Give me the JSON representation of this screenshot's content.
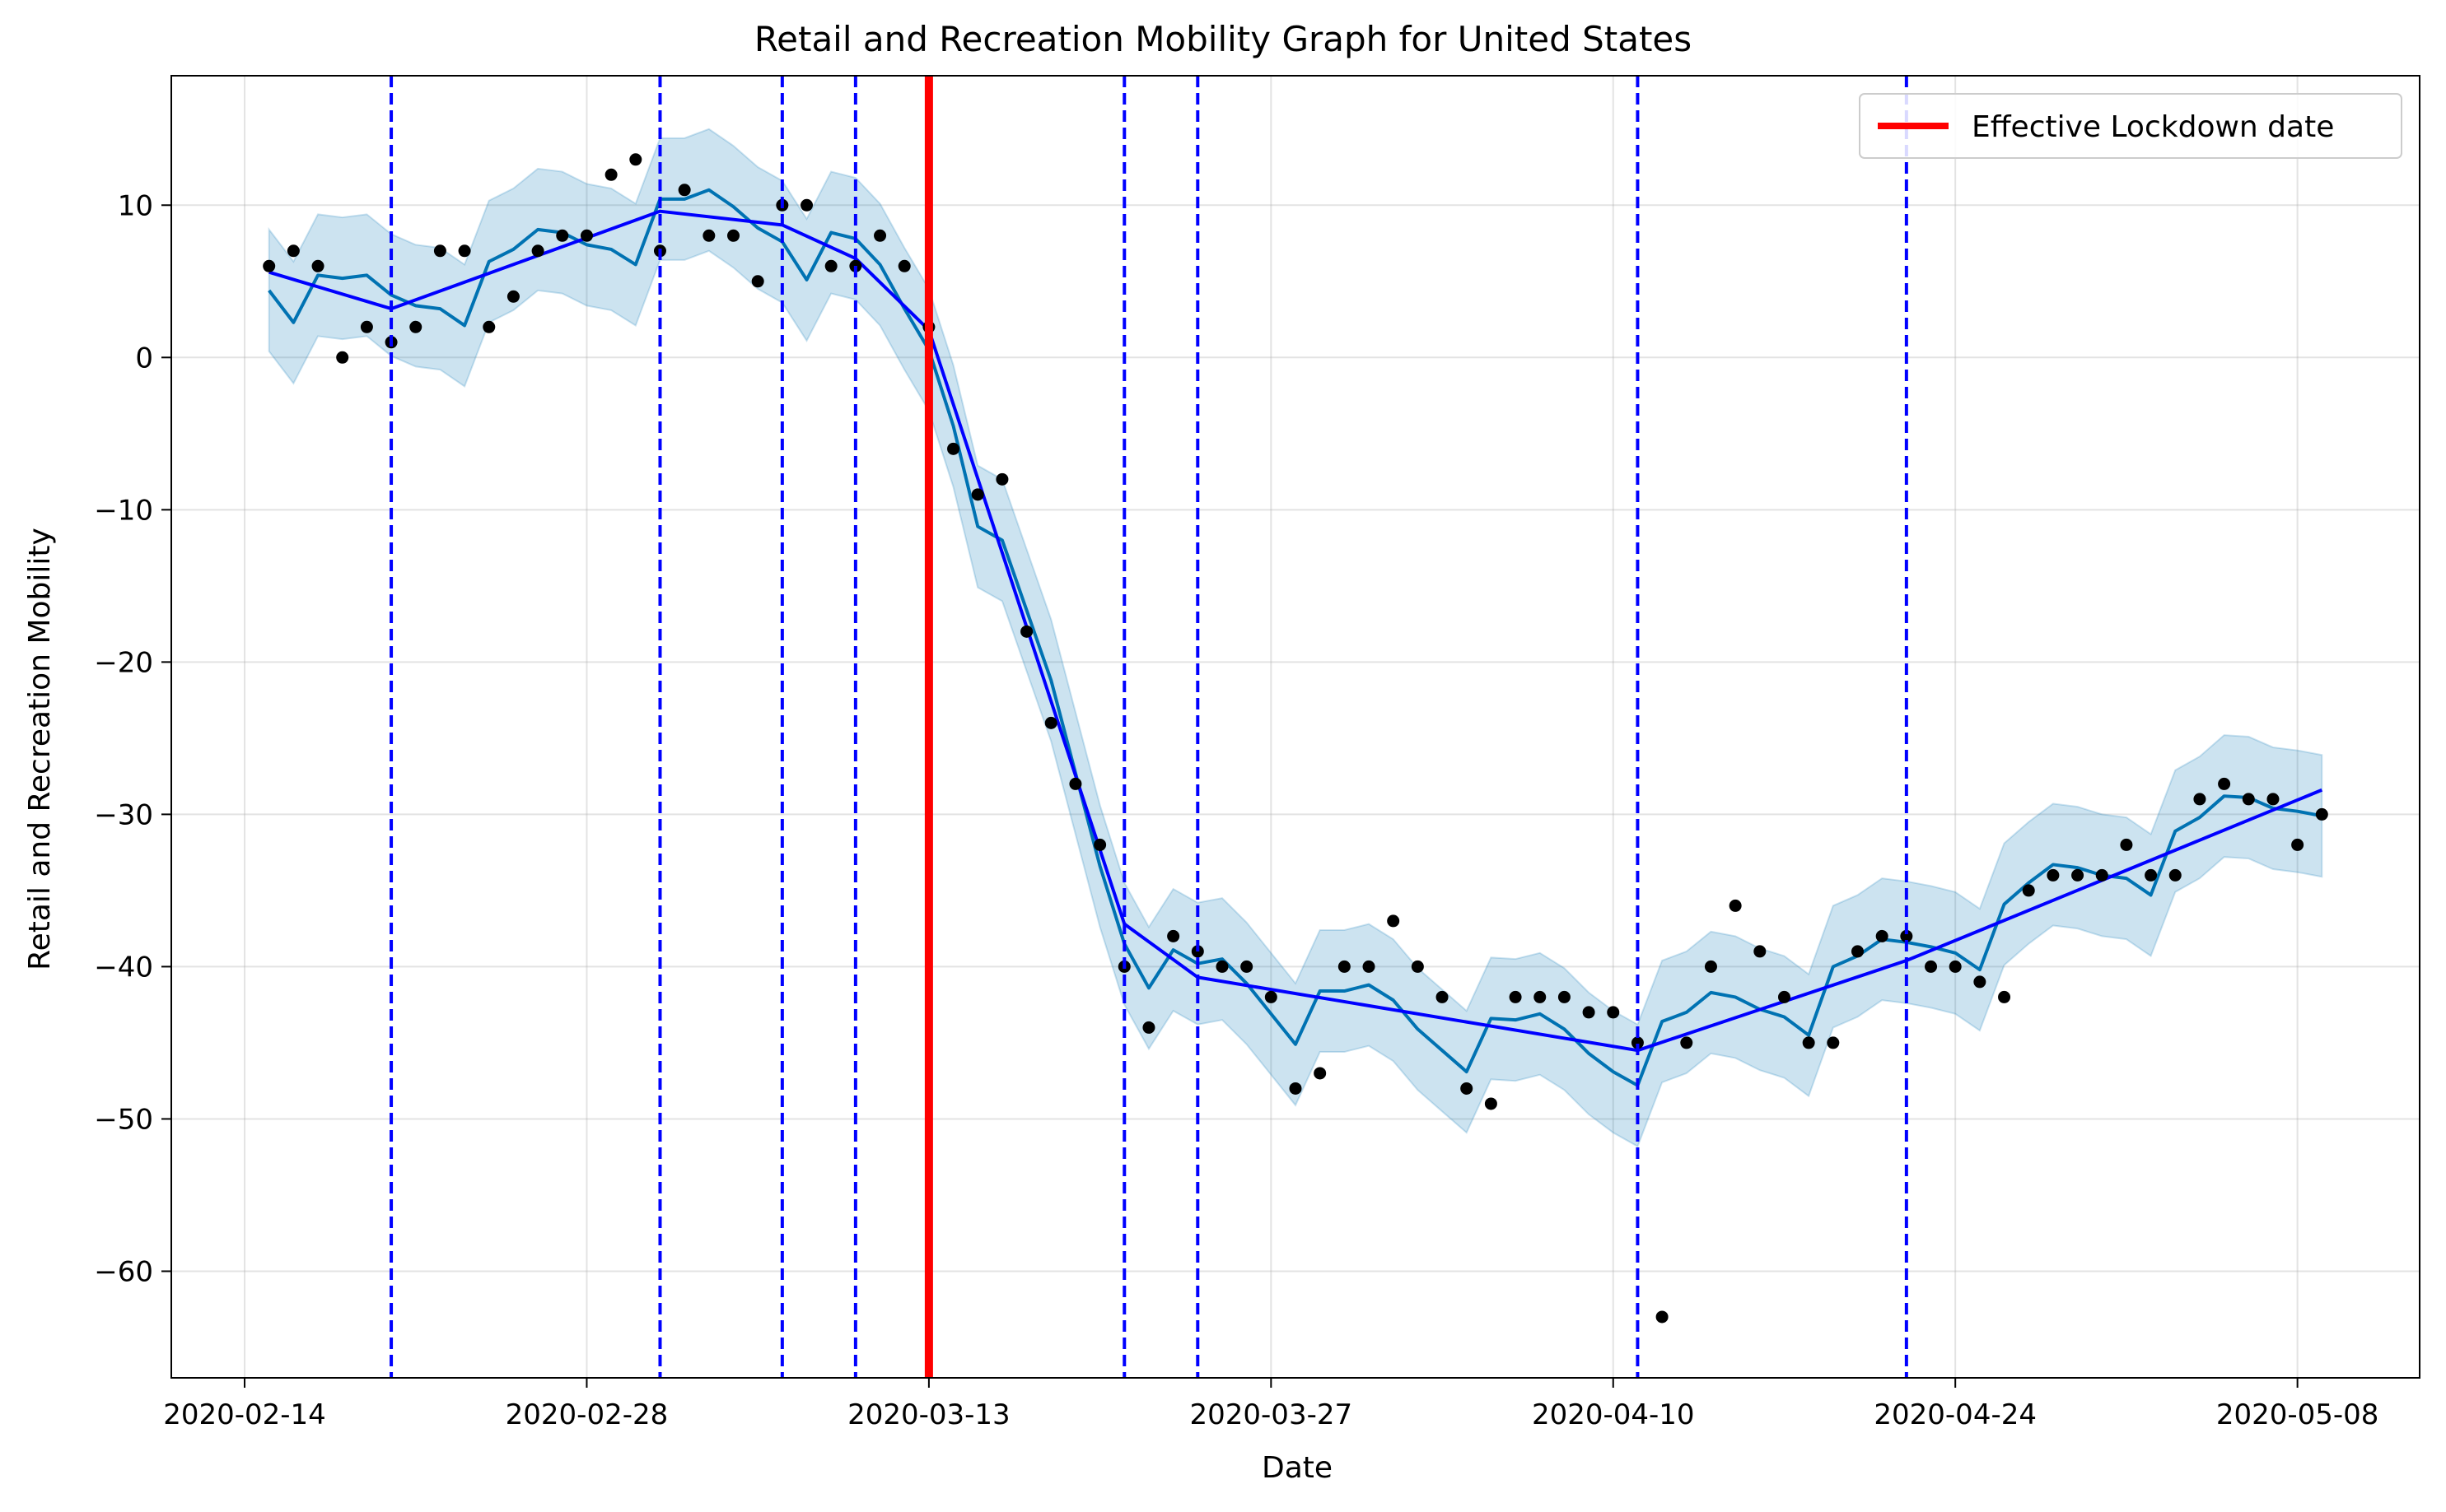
{
  "chart_data": {
    "type": "line",
    "title": "Retail and Recreation Mobility Graph for United States",
    "xlabel": "Date",
    "ylabel": "Retail and Recreation Mobility",
    "x_axis_type": "date",
    "xlim": [
      "2020-02-11",
      "2020-05-13"
    ],
    "ylim": [
      -67,
      18.5
    ],
    "x_ticks": [
      "2020-02-14",
      "2020-02-28",
      "2020-03-13",
      "2020-03-27",
      "2020-04-10",
      "2020-04-24",
      "2020-05-08"
    ],
    "y_ticks": [
      10,
      0,
      -10,
      -20,
      -30,
      -40,
      -50,
      -60
    ],
    "y_tick_labels": [
      "10",
      "0",
      "−10",
      "−20",
      "−30",
      "−40",
      "−50",
      "−60"
    ],
    "grid": true,
    "legend": {
      "placement": "top-right",
      "entries": [
        {
          "label": "Effective Lockdown date",
          "color": "#ff0000"
        }
      ]
    },
    "lockdown_date": "2020-03-13",
    "changepoints": [
      "2020-02-20",
      "2020-03-02",
      "2020-03-07",
      "2020-03-10",
      "2020-03-21",
      "2020-03-24",
      "2020-04-11",
      "2020-04-22"
    ],
    "trend": [
      [
        "2020-02-15",
        5.6
      ],
      [
        "2020-02-20",
        3.2
      ],
      [
        "2020-03-02",
        9.6
      ],
      [
        "2020-03-07",
        8.7
      ],
      [
        "2020-03-10",
        6.5
      ],
      [
        "2020-03-13",
        1.8
      ],
      [
        "2020-03-21",
        -37.2
      ],
      [
        "2020-03-24",
        -40.7
      ],
      [
        "2020-04-11",
        -45.5
      ],
      [
        "2020-04-22",
        -39.6
      ],
      [
        "2020-05-09",
        -28.4
      ]
    ],
    "actual": [
      6,
      7,
      6,
      0,
      2,
      1,
      2,
      7,
      7,
      2,
      4,
      7,
      8,
      8,
      12,
      13,
      7,
      11,
      8,
      8,
      5,
      10,
      10,
      6,
      6,
      8,
      6,
      2,
      -6,
      -9,
      -8,
      -18,
      -24,
      -28,
      -32,
      -40,
      -44,
      -38,
      -39,
      -40,
      -40,
      -42,
      -48,
      -47,
      -40,
      -40,
      -37,
      -40,
      -42,
      -48,
      -49,
      -42,
      -42,
      -42,
      -43,
      -43,
      -45,
      -63,
      -45,
      -40,
      -36,
      -39,
      -42,
      -45,
      -45,
      -39,
      -38,
      -38,
      -40,
      -40,
      -41,
      -42,
      -35,
      -34,
      -34,
      -34,
      -32,
      -34,
      -34,
      -29,
      -28,
      -29,
      -29,
      -32,
      -30
    ],
    "forecast": [
      4.4,
      2.3,
      5.4,
      5.2,
      5.4,
      4.1,
      3.4,
      3.2,
      2.1,
      6.3,
      7.1,
      8.4,
      8.2,
      7.4,
      7.1,
      6.1,
      10.4,
      10.4,
      11.0,
      9.9,
      8.5,
      7.6,
      5.1,
      8.2,
      7.8,
      6.1,
      3.2,
      0.5,
      -4.5,
      -11.1,
      -12.0,
      -16.6,
      -21.2,
      -27.3,
      -33.4,
      -38.5,
      -41.4,
      -38.9,
      -39.8,
      -39.5,
      -41.1,
      -43.1,
      -45.1,
      -41.6,
      -41.6,
      -41.2,
      -42.2,
      -44.1,
      -45.5,
      -46.9,
      -43.4,
      -43.5,
      -43.1,
      -44.1,
      -45.7,
      -46.9,
      -47.8,
      -43.6,
      -43.0,
      -41.7,
      -42.0,
      -42.8,
      -43.3,
      -44.5,
      -40.0,
      -39.3,
      -38.2,
      -38.4,
      -38.7,
      -39.1,
      -40.2,
      -35.9,
      -34.5,
      -33.3,
      -33.5,
      -34.0,
      -34.2,
      -35.3,
      -31.1,
      -30.2,
      -28.8,
      -28.9,
      -29.6,
      -29.8,
      -30.1
    ],
    "uncertainty_halfwidth": 4.0,
    "series_colors": {
      "trend": "#0000ff",
      "forecast": "#0072b2",
      "band": "#0072b2",
      "actual": "#000000",
      "lockdown": "#ff0000",
      "changepoint": "#0000ff"
    }
  }
}
